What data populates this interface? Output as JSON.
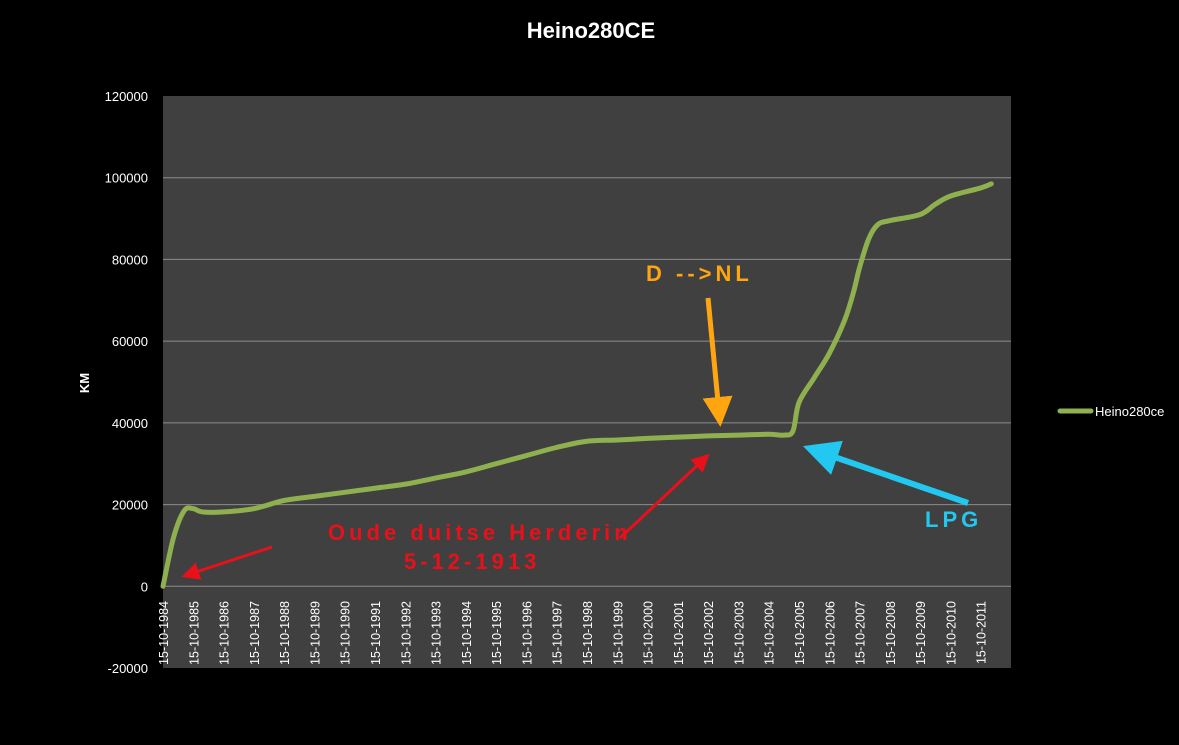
{
  "chart_data": {
    "type": "line",
    "title": "Heino280CE",
    "ylabel": "KM",
    "xlabel": "",
    "ylim": [
      -20000,
      120000
    ],
    "yticks": [
      "-20000",
      "0",
      "20000",
      "40000",
      "60000",
      "80000",
      "100000",
      "120000"
    ],
    "ytick_values": [
      -20000,
      0,
      20000,
      40000,
      60000,
      80000,
      100000,
      120000
    ],
    "grid": true,
    "legend_position": "right",
    "categories": [
      "15-10-1984",
      "15-10-1985",
      "15-10-1986",
      "15-10-1987",
      "15-10-1988",
      "15-10-1989",
      "15-10-1990",
      "15-10-1991",
      "15-10-1992",
      "15-10-1993",
      "15-10-1994",
      "15-10-1995",
      "15-10-1996",
      "15-10-1997",
      "15-10-1998",
      "15-10-1999",
      "15-10-2000",
      "15-10-2001",
      "15-10-2002",
      "15-10-2003",
      "15-10-2004",
      "15-10-2005",
      "15-10-2006",
      "15-10-2007",
      "15-10-2008",
      "15-10-2009",
      "15-10-2010",
      "15-10-2011"
    ],
    "series": [
      {
        "name": "Heino280ce",
        "color": "#8fb04e",
        "points": [
          [
            0,
            0
          ],
          [
            0.35,
            12000
          ],
          [
            0.7,
            18500
          ],
          [
            1.0,
            19000
          ],
          [
            1.3,
            18200
          ],
          [
            2.0,
            18200
          ],
          [
            3.0,
            19000
          ],
          [
            4.0,
            21000
          ],
          [
            5.0,
            22000
          ],
          [
            6.0,
            23000
          ],
          [
            7.0,
            24000
          ],
          [
            8.0,
            25000
          ],
          [
            9.0,
            26500
          ],
          [
            10.0,
            28000
          ],
          [
            11.0,
            30000
          ],
          [
            12.0,
            32000
          ],
          [
            13.0,
            34000
          ],
          [
            14.0,
            35500
          ],
          [
            15.0,
            35800
          ],
          [
            16.0,
            36200
          ],
          [
            17.0,
            36500
          ],
          [
            18.0,
            36800
          ],
          [
            19.0,
            37000
          ],
          [
            20.0,
            37200
          ],
          [
            20.5,
            37000
          ],
          [
            20.8,
            38000
          ],
          [
            21.0,
            45000
          ],
          [
            21.5,
            51000
          ],
          [
            22.0,
            57000
          ],
          [
            22.5,
            65000
          ],
          [
            22.8,
            72000
          ],
          [
            23.0,
            78000
          ],
          [
            23.3,
            85000
          ],
          [
            23.6,
            88500
          ],
          [
            24.0,
            89500
          ],
          [
            25.0,
            91000
          ],
          [
            25.5,
            93500
          ],
          [
            26.0,
            95500
          ],
          [
            27.0,
            97500
          ],
          [
            27.35,
            98500
          ]
        ]
      }
    ],
    "annotations": [
      {
        "text": "D -->NL",
        "color": "#ffa510"
      },
      {
        "text": "LPG",
        "color": "#22c8f0"
      },
      {
        "text": "Oude duitse Herderin",
        "color": "#e8101a"
      },
      {
        "text": "5-12-1913",
        "color": "#e8101a"
      }
    ]
  }
}
